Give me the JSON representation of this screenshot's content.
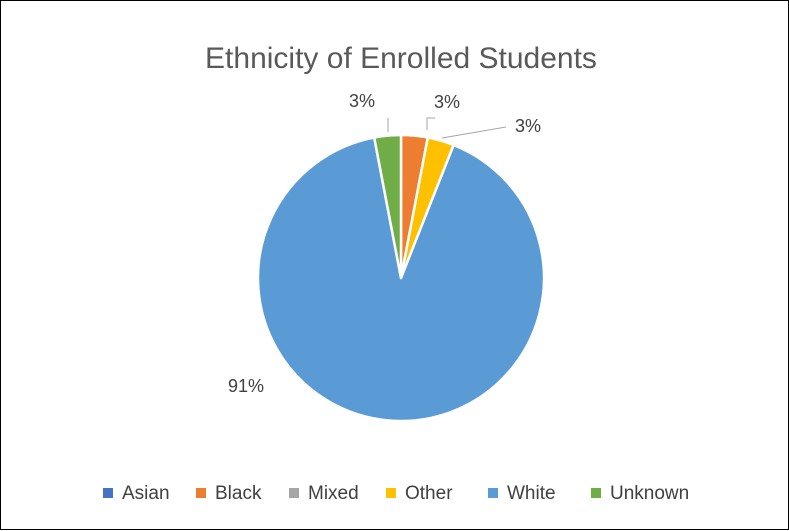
{
  "chart_data": {
    "type": "pie",
    "title": "Ethnicity of Enrolled Students",
    "categories": [
      "Asian",
      "Black",
      "Mixed",
      "Other",
      "White",
      "Unknown"
    ],
    "values": [
      0,
      3,
      0,
      3,
      91,
      3
    ],
    "data_labels": [
      "",
      "3%",
      "",
      "3%",
      "91%",
      "3%"
    ],
    "colors": [
      "#4472C4",
      "#ED7D31",
      "#A5A5A5",
      "#FFC000",
      "#5B9BD5",
      "#70AD47"
    ],
    "legend_position": "bottom",
    "start_angle": "12 o'clock, clockwise"
  }
}
